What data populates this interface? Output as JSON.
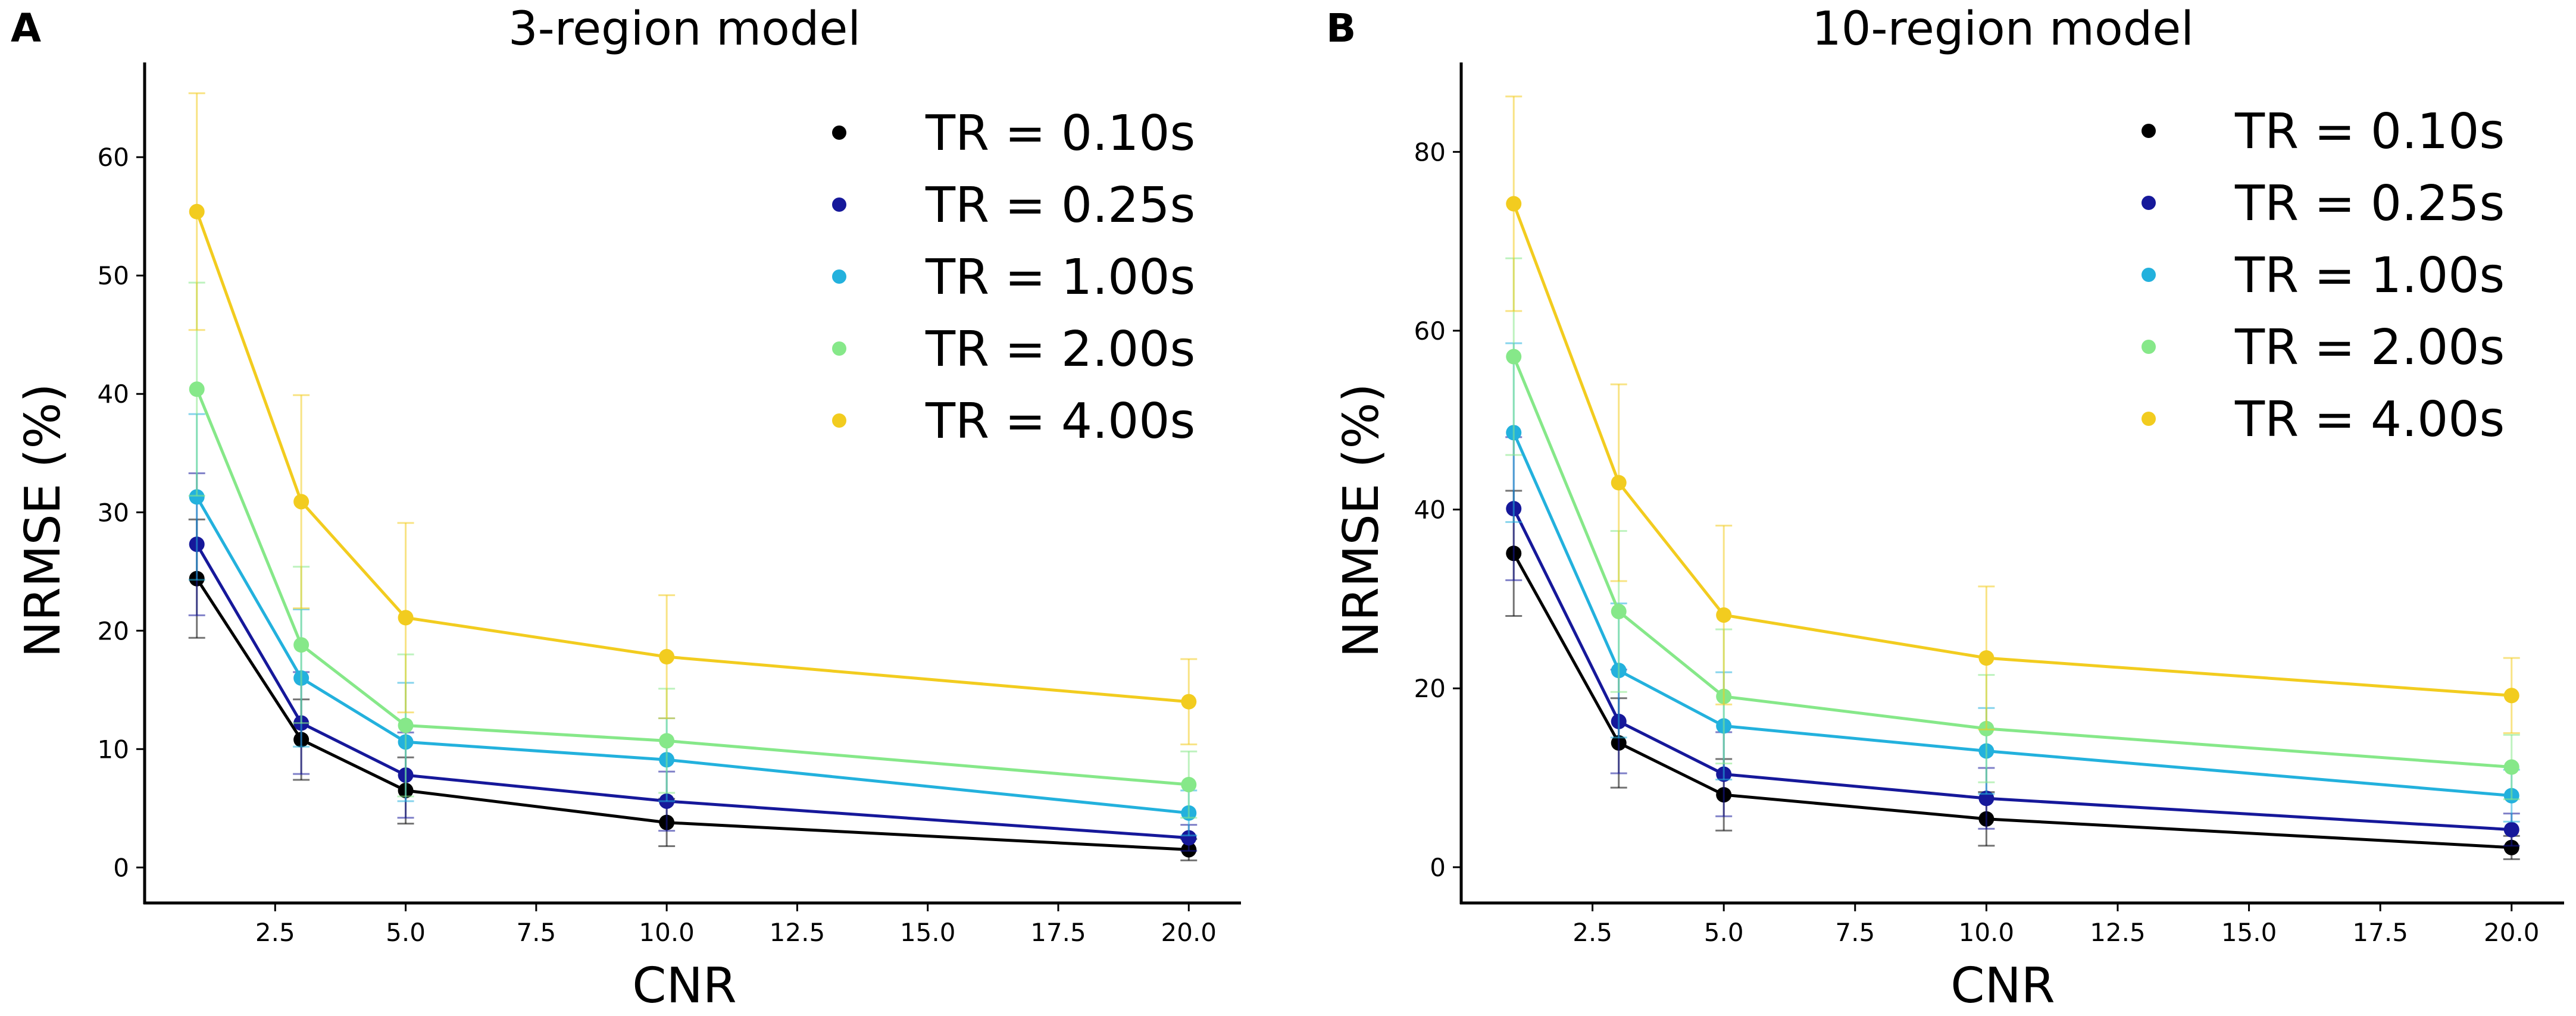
{
  "chart_data": [
    {
      "panel_label": "A",
      "type": "line",
      "title": "3-region model",
      "xlabel": "CNR",
      "ylabel": "NRMSE (%)",
      "xlim": [
        0.0,
        21.0
      ],
      "ylim": [
        -3,
        68
      ],
      "xticks": [
        2.5,
        5.0,
        7.5,
        10.0,
        12.5,
        15.0,
        17.5,
        20.0
      ],
      "xtick_labels": [
        "2.5",
        "5.0",
        "7.5",
        "10.0",
        "12.5",
        "15.0",
        "17.5",
        "20.0"
      ],
      "yticks": [
        0,
        10,
        20,
        30,
        40,
        50,
        60
      ],
      "ytick_labels": [
        "0",
        "10",
        "20",
        "30",
        "40",
        "50",
        "60"
      ],
      "legend_position": "top-right",
      "x": [
        1,
        3,
        5,
        10,
        20
      ],
      "series": [
        {
          "name": "TR = 0.10s",
          "color": "#000000",
          "values": [
            24.4,
            10.8,
            6.5,
            3.8,
            1.5
          ],
          "errors": [
            5.0,
            3.4,
            2.8,
            2.0,
            0.9
          ]
        },
        {
          "name": "TR = 0.25s",
          "color": "#16189a",
          "values": [
            27.3,
            12.2,
            7.8,
            5.6,
            2.5
          ],
          "errors": [
            6.0,
            4.3,
            3.6,
            2.5,
            1.1
          ]
        },
        {
          "name": "TR = 1.00s",
          "color": "#23b1dd",
          "values": [
            31.3,
            16.0,
            10.6,
            9.1,
            4.6
          ],
          "errors": [
            7.0,
            5.8,
            5.0,
            3.5,
            1.9
          ]
        },
        {
          "name": "TR = 2.00s",
          "color": "#86e889",
          "values": [
            40.4,
            18.8,
            12.0,
            10.7,
            7.0
          ],
          "errors": [
            9.0,
            6.6,
            6.0,
            4.4,
            2.8
          ]
        },
        {
          "name": "TR = 4.00s",
          "color": "#f2cc1f",
          "values": [
            55.4,
            30.9,
            21.1,
            17.8,
            14.0
          ],
          "errors": [
            10.0,
            9.0,
            8.0,
            5.2,
            3.6
          ]
        }
      ]
    },
    {
      "panel_label": "B",
      "type": "line",
      "title": "10-region model",
      "xlabel": "CNR",
      "ylabel": "NRMSE (%)",
      "xlim": [
        0.0,
        21.0
      ],
      "ylim": [
        -4,
        90
      ],
      "xticks": [
        2.5,
        5.0,
        7.5,
        10.0,
        12.5,
        15.0,
        17.5,
        20.0
      ],
      "xtick_labels": [
        "2.5",
        "5.0",
        "7.5",
        "10.0",
        "12.5",
        "15.0",
        "17.5",
        "20.0"
      ],
      "yticks": [
        0,
        20,
        40,
        60,
        80
      ],
      "ytick_labels": [
        "0",
        "20",
        "40",
        "60",
        "80"
      ],
      "legend_position": "top-right",
      "x": [
        1,
        3,
        5,
        10,
        20
      ],
      "series": [
        {
          "name": "TR = 0.10s",
          "color": "#000000",
          "values": [
            35.1,
            13.9,
            8.1,
            5.4,
            2.2
          ],
          "errors": [
            7.0,
            5.0,
            4.0,
            3.0,
            1.3
          ]
        },
        {
          "name": "TR = 0.25s",
          "color": "#16189a",
          "values": [
            40.1,
            16.3,
            10.4,
            7.7,
            4.2
          ],
          "errors": [
            8.0,
            5.8,
            4.7,
            3.4,
            1.8
          ]
        },
        {
          "name": "TR = 1.00s",
          "color": "#23b1dd",
          "values": [
            48.6,
            22.0,
            15.8,
            13.0,
            8.0
          ],
          "errors": [
            10.0,
            7.5,
            6.0,
            4.8,
            2.9
          ]
        },
        {
          "name": "TR = 2.00s",
          "color": "#86e889",
          "values": [
            57.1,
            28.6,
            19.1,
            15.5,
            11.2
          ],
          "errors": [
            11.0,
            9.0,
            7.5,
            6.0,
            3.6
          ]
        },
        {
          "name": "TR = 4.00s",
          "color": "#f2cc1f",
          "values": [
            74.2,
            43.0,
            28.2,
            23.4,
            19.2
          ],
          "errors": [
            12.0,
            11.0,
            10.0,
            8.0,
            4.2
          ]
        }
      ]
    }
  ]
}
